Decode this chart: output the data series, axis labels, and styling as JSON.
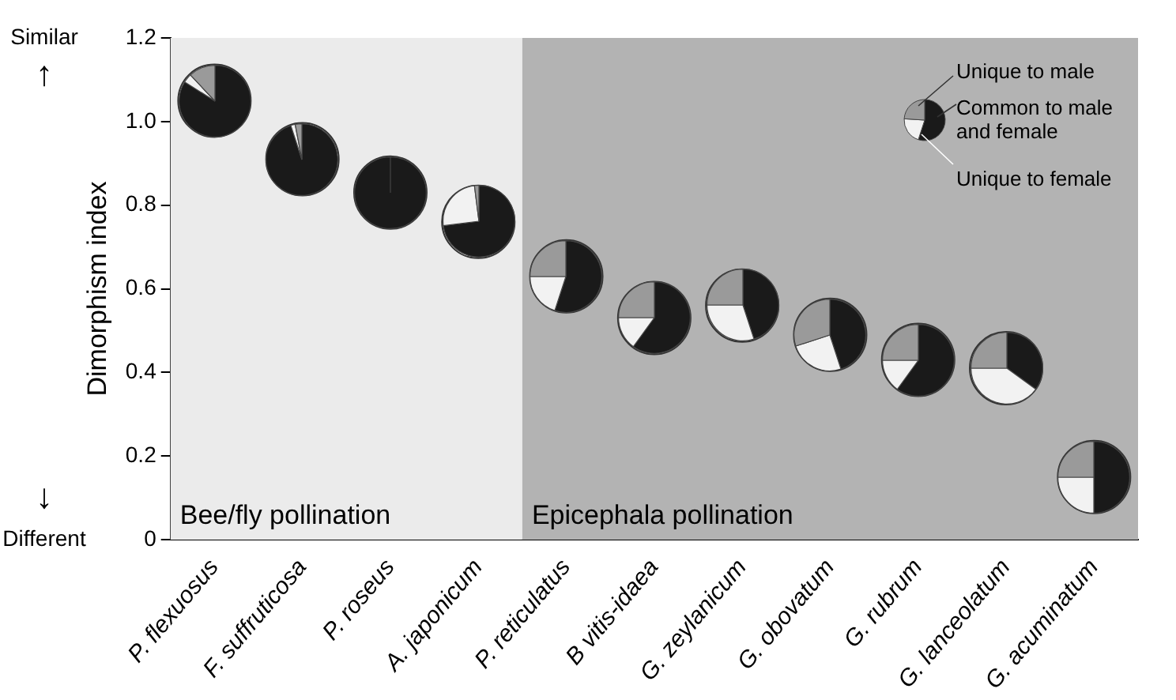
{
  "chart_data": [
    {
      "type": "scatter",
      "ylabel": "Dimorphism index",
      "categories": [
        "P. flexuosus",
        "F. suffruticosa",
        "P. roseus",
        "A. japonicum",
        "P. reticulatus",
        "B vitis-idaea",
        "G. zeylanicum",
        "G. obovatum",
        "G. rubrum",
        "G. lanceolatum",
        "G. acuminatum"
      ],
      "values": [
        1.05,
        0.91,
        0.83,
        0.76,
        0.63,
        0.53,
        0.56,
        0.49,
        0.43,
        0.41,
        0.15
      ],
      "color": "#333333",
      "marker": "circle",
      "legend": false,
      "grid": false,
      "ylim": [
        0,
        1.2
      ],
      "yticks": [
        0,
        0.2,
        0.4,
        0.6,
        0.8,
        {
          "value": 1,
          "label": "1.0"
        },
        1.2
      ],
      "bands": [
        {
          "axis": "x",
          "from": "P. flexuosus",
          "to": "A. japonicum",
          "label": "Bee/fly pollination",
          "color": "#ebebeb"
        },
        {
          "axis": "x",
          "from": "P. reticulatus",
          "to": "G. acuminatum",
          "label": "Epicephala pollination",
          "color": "#b3b3b3"
        }
      ],
      "annotations": [
        "Similar",
        "↑",
        "↓",
        "Different",
        "Unique to male",
        "Common to male and female",
        "Unique to female"
      ]
    },
    {
      "type": "pie",
      "categories": [
        null,
        null,
        null
      ],
      "values": [
        84,
        4,
        12
      ],
      "colors": [
        "#1a1a1a",
        "#f2f2f2",
        "#9a9a9a"
      ]
    },
    {
      "type": "pie",
      "categories": [
        null,
        null,
        null
      ],
      "values": [
        95,
        2,
        3
      ],
      "colors": [
        "#1a1a1a",
        "#f2f2f2",
        "#9a9a9a"
      ]
    },
    {
      "type": "pie",
      "categories": [
        null,
        null,
        null
      ],
      "values": [
        100,
        0,
        0
      ],
      "colors": [
        "#1a1a1a",
        "#f2f2f2",
        "#9a9a9a"
      ]
    },
    {
      "type": "pie",
      "categories": [
        null,
        null,
        null
      ],
      "values": [
        73,
        25,
        2
      ],
      "colors": [
        "#1a1a1a",
        "#f2f2f2",
        "#9a9a9a"
      ]
    },
    {
      "type": "pie",
      "categories": [
        null,
        null,
        null
      ],
      "values": [
        55,
        20,
        25
      ],
      "colors": [
        "#1a1a1a",
        "#f2f2f2",
        "#9a9a9a"
      ]
    },
    {
      "type": "pie",
      "categories": [
        null,
        null,
        null
      ],
      "values": [
        60,
        15,
        25
      ],
      "colors": [
        "#1a1a1a",
        "#f2f2f2",
        "#9a9a9a"
      ]
    },
    {
      "type": "pie",
      "categories": [
        null,
        null,
        null
      ],
      "values": [
        45,
        30,
        25
      ],
      "colors": [
        "#1a1a1a",
        "#f2f2f2",
        "#9a9a9a"
      ]
    },
    {
      "type": "pie",
      "categories": [
        null,
        null,
        null
      ],
      "values": [
        45,
        25,
        30
      ],
      "colors": [
        "#1a1a1a",
        "#f2f2f2",
        "#9a9a9a"
      ]
    },
    {
      "type": "pie",
      "categories": [
        null,
        null,
        null
      ],
      "values": [
        60,
        15,
        25
      ],
      "colors": [
        "#1a1a1a",
        "#f2f2f2",
        "#9a9a9a"
      ]
    },
    {
      "type": "pie",
      "categories": [
        null,
        null,
        null
      ],
      "values": [
        35,
        40,
        25
      ],
      "colors": [
        "#1a1a1a",
        "#f2f2f2",
        "#9a9a9a"
      ]
    },
    {
      "type": "pie",
      "categories": [
        null,
        null,
        null
      ],
      "values": [
        50,
        25,
        25
      ],
      "colors": [
        "#1a1a1a",
        "#f2f2f2",
        "#9a9a9a"
      ]
    }
  ]
}
